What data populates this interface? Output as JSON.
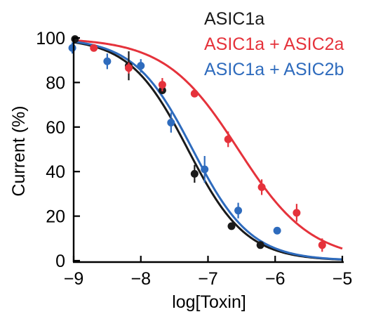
{
  "chart_data": {
    "type": "scatter",
    "xlabel": "log[Toxin]",
    "ylabel": "Current (%)",
    "xlim": [
      -9,
      -5
    ],
    "ylim": [
      0,
      100
    ],
    "xticks": [
      -9,
      -8,
      -7,
      -6,
      -5
    ],
    "yticks": [
      0,
      20,
      40,
      60,
      80,
      100
    ],
    "xtick_labels": [
      "−9",
      "−8",
      "−7",
      "−6",
      "−5"
    ],
    "ytick_labels": [
      "0",
      "20",
      "40",
      "60",
      "80",
      "100"
    ],
    "legend_position": "top-right",
    "series": [
      {
        "name": "ASIC1a",
        "color": "#1a1a1a",
        "fit": {
          "ic50_log": -7.3,
          "hill": 1.0
        },
        "points": [
          {
            "x": -8.98,
            "y": 99.5,
            "err": 1.5
          },
          {
            "x": -8.18,
            "y": 87.5,
            "err": 6.5
          },
          {
            "x": -7.68,
            "y": 76.5,
            "err": 1.5
          },
          {
            "x": -7.2,
            "y": 39,
            "err": 4.0
          },
          {
            "x": -6.65,
            "y": 15.5,
            "err": 1.0
          },
          {
            "x": -6.22,
            "y": 7,
            "err": 1.0
          }
        ]
      },
      {
        "name": "ASIC1a + ASIC2a",
        "color": "#e5323b",
        "fit": {
          "ic50_log": -6.55,
          "hill": 0.8
        },
        "points": [
          {
            "x": -8.7,
            "y": 95.5,
            "err": 1.5
          },
          {
            "x": -8.18,
            "y": 86.5,
            "err": 2.5
          },
          {
            "x": -7.68,
            "y": 79,
            "err": 3.0
          },
          {
            "x": -7.2,
            "y": 75,
            "err": 1.5
          },
          {
            "x": -6.7,
            "y": 54.5,
            "err": 3.5
          },
          {
            "x": -6.2,
            "y": 33,
            "err": 3.5
          },
          {
            "x": -5.68,
            "y": 21.5,
            "err": 4.0
          },
          {
            "x": -5.3,
            "y": 7,
            "err": 3.0
          }
        ]
      },
      {
        "name": "ASIC1a + ASIC2b",
        "color": "#2e6bbd",
        "fit": {
          "ic50_log": -7.23,
          "hill": 1.0
        },
        "points": [
          {
            "x": -9.02,
            "y": 95.5,
            "err": 2.5
          },
          {
            "x": -8.5,
            "y": 89.5,
            "err": 3.5
          },
          {
            "x": -8.0,
            "y": 87.5,
            "err": 3.0
          },
          {
            "x": -7.55,
            "y": 62,
            "err": 4.5
          },
          {
            "x": -7.05,
            "y": 41,
            "err": 6.0
          },
          {
            "x": -6.55,
            "y": 22.5,
            "err": 3.5
          },
          {
            "x": -5.97,
            "y": 13.5,
            "err": 1.0
          }
        ]
      }
    ]
  }
}
